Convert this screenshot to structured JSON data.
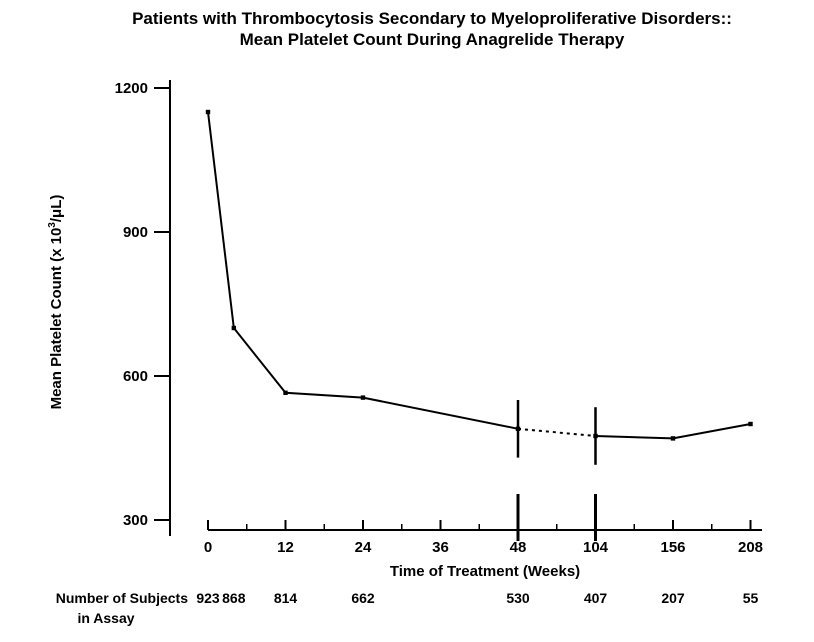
{
  "title": {
    "line1": "Patients with Thrombocytosis Secondary to Myeloproliferative Disorders::",
    "line2": "Mean Platelet Count During Anagrelide Therapy"
  },
  "chart_data": {
    "type": "line",
    "title": "Patients with Thrombocytosis Secondary to Myeloproliferative Disorders:: Mean Platelet Count During Anagrelide Therapy",
    "xlabel": "Time of Treatment (Weeks)",
    "ylabel": "Mean Platelet Count (x 10 3/μL)",
    "ylabel_parts": {
      "main": "Mean Platelet Count (x 10",
      "sup": "3",
      "tail": "/μL)"
    },
    "x_weeks": [
      0,
      4,
      12,
      24,
      48,
      104,
      156,
      208
    ],
    "mean_platelet_count": [
      1150,
      700,
      565,
      555,
      490,
      475,
      470,
      500
    ],
    "error_bars": [
      {
        "week": 48,
        "value": 490,
        "half_range": 60
      },
      {
        "week": 104,
        "value": 475,
        "half_range": 60
      }
    ],
    "x_ticks": [
      0,
      12,
      24,
      36,
      48,
      104,
      156,
      208
    ],
    "y_ticks": [
      300,
      600,
      900,
      1200
    ],
    "ylim": [
      300,
      1200
    ],
    "axis_break_between": [
      48,
      104
    ],
    "line_segments": [
      {
        "style": "solid",
        "weeks": [
          0,
          4,
          12,
          24,
          48
        ]
      },
      {
        "style": "dashed",
        "weeks": [
          48,
          104
        ]
      },
      {
        "style": "solid",
        "weeks": [
          104,
          156,
          208
        ]
      }
    ],
    "subjects": {
      "label_line1": "Number of Subjects",
      "label_line2": "in Assay",
      "weeks": [
        0,
        4,
        12,
        24,
        48,
        104,
        156,
        208
      ],
      "values": [
        923,
        868,
        814,
        662,
        530,
        407,
        207,
        55
      ]
    },
    "grid": false,
    "line_color": "#000000",
    "background_color": "#ffffff"
  }
}
